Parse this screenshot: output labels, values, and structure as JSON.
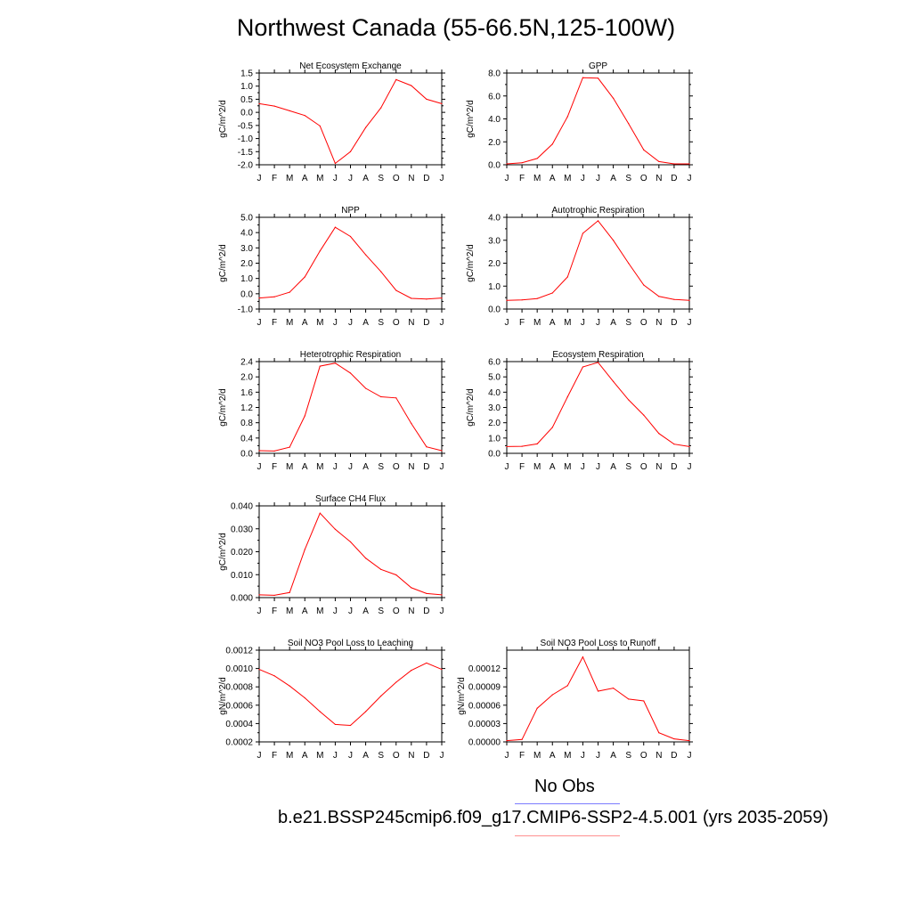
{
  "page_title": "Northwest Canada (55-66.5N,125-100W)",
  "legend": {
    "obs_label": "No Obs",
    "obs_color": "#7b7bff",
    "model_label": "b.e21.BSSP245cmip6.f09_g17.CMIP6-SSP2-4.5.001 (yrs 2035-2059)",
    "model_color": "#ff0000"
  },
  "month_labels": [
    "J",
    "F",
    "M",
    "A",
    "M",
    "J",
    "J",
    "A",
    "S",
    "O",
    "N",
    "D",
    "J"
  ],
  "chart_data": [
    {
      "type": "line",
      "title": "Net Ecosystem Exchange",
      "ylabel": "gC/m^2/d",
      "ylim": [
        -2.0,
        1.5
      ],
      "yticks": [
        -2.0,
        -1.5,
        -1.0,
        -0.5,
        0.0,
        0.5,
        1.0,
        1.5
      ],
      "ytick_labels": [
        "-2.0",
        "-1.5",
        "-1.0",
        "-0.5",
        "0.0",
        "0.5",
        "1.0",
        "1.5"
      ],
      "values": [
        0.33,
        0.24,
        0.06,
        -0.12,
        -0.52,
        -1.95,
        -1.5,
        -0.58,
        0.17,
        1.25,
        1.02,
        0.5,
        0.33
      ]
    },
    {
      "type": "line",
      "title": "GPP",
      "ylabel": "gC/m^2/d",
      "ylim": [
        0.0,
        8.0
      ],
      "yticks": [
        0,
        2,
        4,
        6,
        8
      ],
      "ytick_labels": [
        "0.0",
        "2.0",
        "4.0",
        "6.0",
        "8.0"
      ],
      "values": [
        0.08,
        0.18,
        0.55,
        1.8,
        4.2,
        7.6,
        7.55,
        5.8,
        3.6,
        1.3,
        0.28,
        0.08,
        0.08
      ]
    },
    {
      "type": "line",
      "title": "NPP",
      "ylabel": "gC/m^2/d",
      "ylim": [
        -1.0,
        5.0
      ],
      "yticks": [
        -1,
        0,
        1,
        2,
        3,
        4,
        5
      ],
      "ytick_labels": [
        "-1.0",
        "0.0",
        "1.0",
        "2.0",
        "3.0",
        "4.0",
        "5.0"
      ],
      "values": [
        -0.28,
        -0.2,
        0.1,
        1.1,
        2.8,
        4.35,
        3.75,
        2.55,
        1.45,
        0.22,
        -0.3,
        -0.35,
        -0.28
      ]
    },
    {
      "type": "line",
      "title": "Autotrophic Respiration",
      "ylabel": "gC/m^2/d",
      "ylim": [
        0.0,
        4.0
      ],
      "yticks": [
        0,
        1,
        2,
        3,
        4
      ],
      "ytick_labels": [
        "0.0",
        "1.0",
        "2.0",
        "3.0",
        "4.0"
      ],
      "values": [
        0.38,
        0.4,
        0.46,
        0.7,
        1.4,
        3.3,
        3.85,
        3.0,
        2.0,
        1.05,
        0.55,
        0.42,
        0.38
      ]
    },
    {
      "type": "line",
      "title": "Heterotrophic Respiration",
      "ylabel": "gC/m^2/d",
      "ylim": [
        0.0,
        2.4
      ],
      "yticks": [
        0.0,
        0.4,
        0.8,
        1.2,
        1.6,
        2.0,
        2.4
      ],
      "ytick_labels": [
        "0.0",
        "0.4",
        "0.8",
        "1.2",
        "1.6",
        "2.0",
        "2.4"
      ],
      "values": [
        0.07,
        0.06,
        0.16,
        0.98,
        2.28,
        2.36,
        2.1,
        1.7,
        1.48,
        1.45,
        0.78,
        0.17,
        0.07
      ]
    },
    {
      "type": "line",
      "title": "Ecosystem Respiration",
      "ylabel": "gC/m^2/d",
      "ylim": [
        0.0,
        6.0
      ],
      "yticks": [
        0,
        1,
        2,
        3,
        4,
        5,
        6
      ],
      "ytick_labels": [
        "0.0",
        "1.0",
        "2.0",
        "3.0",
        "4.0",
        "5.0",
        "6.0"
      ],
      "values": [
        0.44,
        0.46,
        0.62,
        1.7,
        3.7,
        5.65,
        5.95,
        4.7,
        3.5,
        2.5,
        1.3,
        0.6,
        0.44
      ]
    },
    {
      "type": "line",
      "title": "Surface CH4 Flux",
      "ylabel": "gC/m^2/d",
      "ylim": [
        0.0,
        0.04
      ],
      "yticks": [
        0.0,
        0.01,
        0.02,
        0.03,
        0.04
      ],
      "ytick_labels": [
        "0.000",
        "0.010",
        "0.020",
        "0.030",
        "0.040"
      ],
      "values": [
        0.0012,
        0.001,
        0.0022,
        0.021,
        0.0368,
        0.0298,
        0.0243,
        0.0172,
        0.0123,
        0.0099,
        0.0043,
        0.0018,
        0.0012
      ]
    },
    {
      "type": "line",
      "title": "Soil NO3 Pool Loss to Leaching",
      "ylabel": "gN/m^2/d",
      "ylim": [
        0.0002,
        0.0012
      ],
      "yticks": [
        0.0002,
        0.0004,
        0.0006,
        0.0008,
        0.001,
        0.0012
      ],
      "ytick_labels": [
        "0.0002",
        "0.0004",
        "0.0006",
        "0.0008",
        "0.0010",
        "0.0012"
      ],
      "values": [
        0.00099,
        0.00092,
        0.00081,
        0.00068,
        0.00053,
        0.00039,
        0.00038,
        0.00053,
        0.0007,
        0.00085,
        0.00098,
        0.00106,
        0.00099
      ]
    },
    {
      "type": "line",
      "title": "Soil NO3 Pool Loss to Runoff",
      "ylabel": "gN/m^2/d",
      "ylim": [
        0.0,
        0.00015
      ],
      "yticks": [
        0.0,
        3e-05,
        6e-05,
        9e-05,
        0.00012
      ],
      "ytick_labels": [
        "0.00000",
        "0.00003",
        "0.00006",
        "0.00009",
        "0.00012"
      ],
      "values": [
        2e-06,
        4e-06,
        5.5e-05,
        7.7e-05,
        9.2e-05,
        0.000139,
        8.3e-05,
        8.8e-05,
        7e-05,
        6.7e-05,
        1.5e-05,
        5e-06,
        2e-06
      ]
    }
  ]
}
